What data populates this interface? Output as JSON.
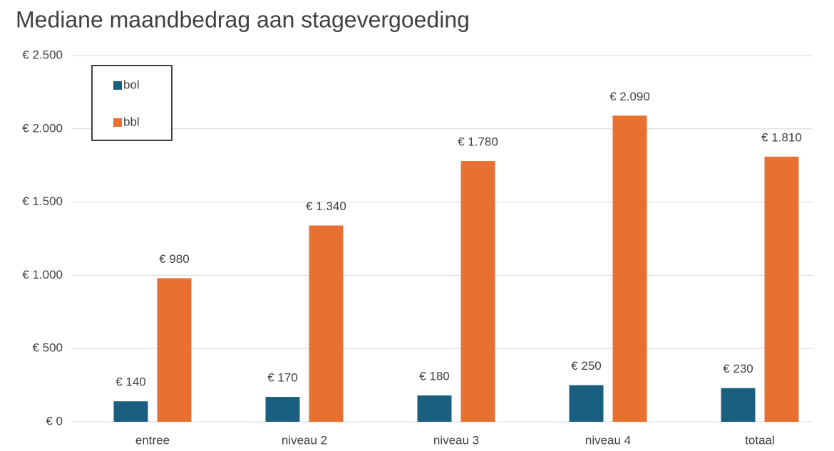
{
  "chart_data": {
    "type": "bar",
    "title": "Mediane maandbedrag aan stagevergoeding",
    "categories": [
      "entree",
      "niveau 2",
      "niveau 3",
      "niveau 4",
      "totaal"
    ],
    "series": [
      {
        "name": "bol",
        "color": "#1b5f80",
        "values": [
          140,
          170,
          180,
          250,
          230
        ],
        "value_labels": [
          "€ 140",
          "€ 170",
          "€ 180",
          "€ 250",
          "€ 230"
        ]
      },
      {
        "name": "bbl",
        "color": "#e87132",
        "values": [
          980,
          1340,
          1780,
          2090,
          1810
        ],
        "value_labels": [
          "€ 980",
          "€ 1.340",
          "€ 1.780",
          "€ 2.090",
          "€ 1.810"
        ]
      }
    ],
    "ylim": [
      0,
      2500
    ],
    "yticks": [
      {
        "value": 0,
        "label": "€ 0"
      },
      {
        "value": 500,
        "label": "€ 500"
      },
      {
        "value": 1000,
        "label": "€ 1.000"
      },
      {
        "value": 1500,
        "label": "€ 1.500"
      },
      {
        "value": 2000,
        "label": "€ 2.000"
      },
      {
        "value": 2500,
        "label": "€ 2.500"
      }
    ],
    "grid": true,
    "legend": "top-left"
  }
}
